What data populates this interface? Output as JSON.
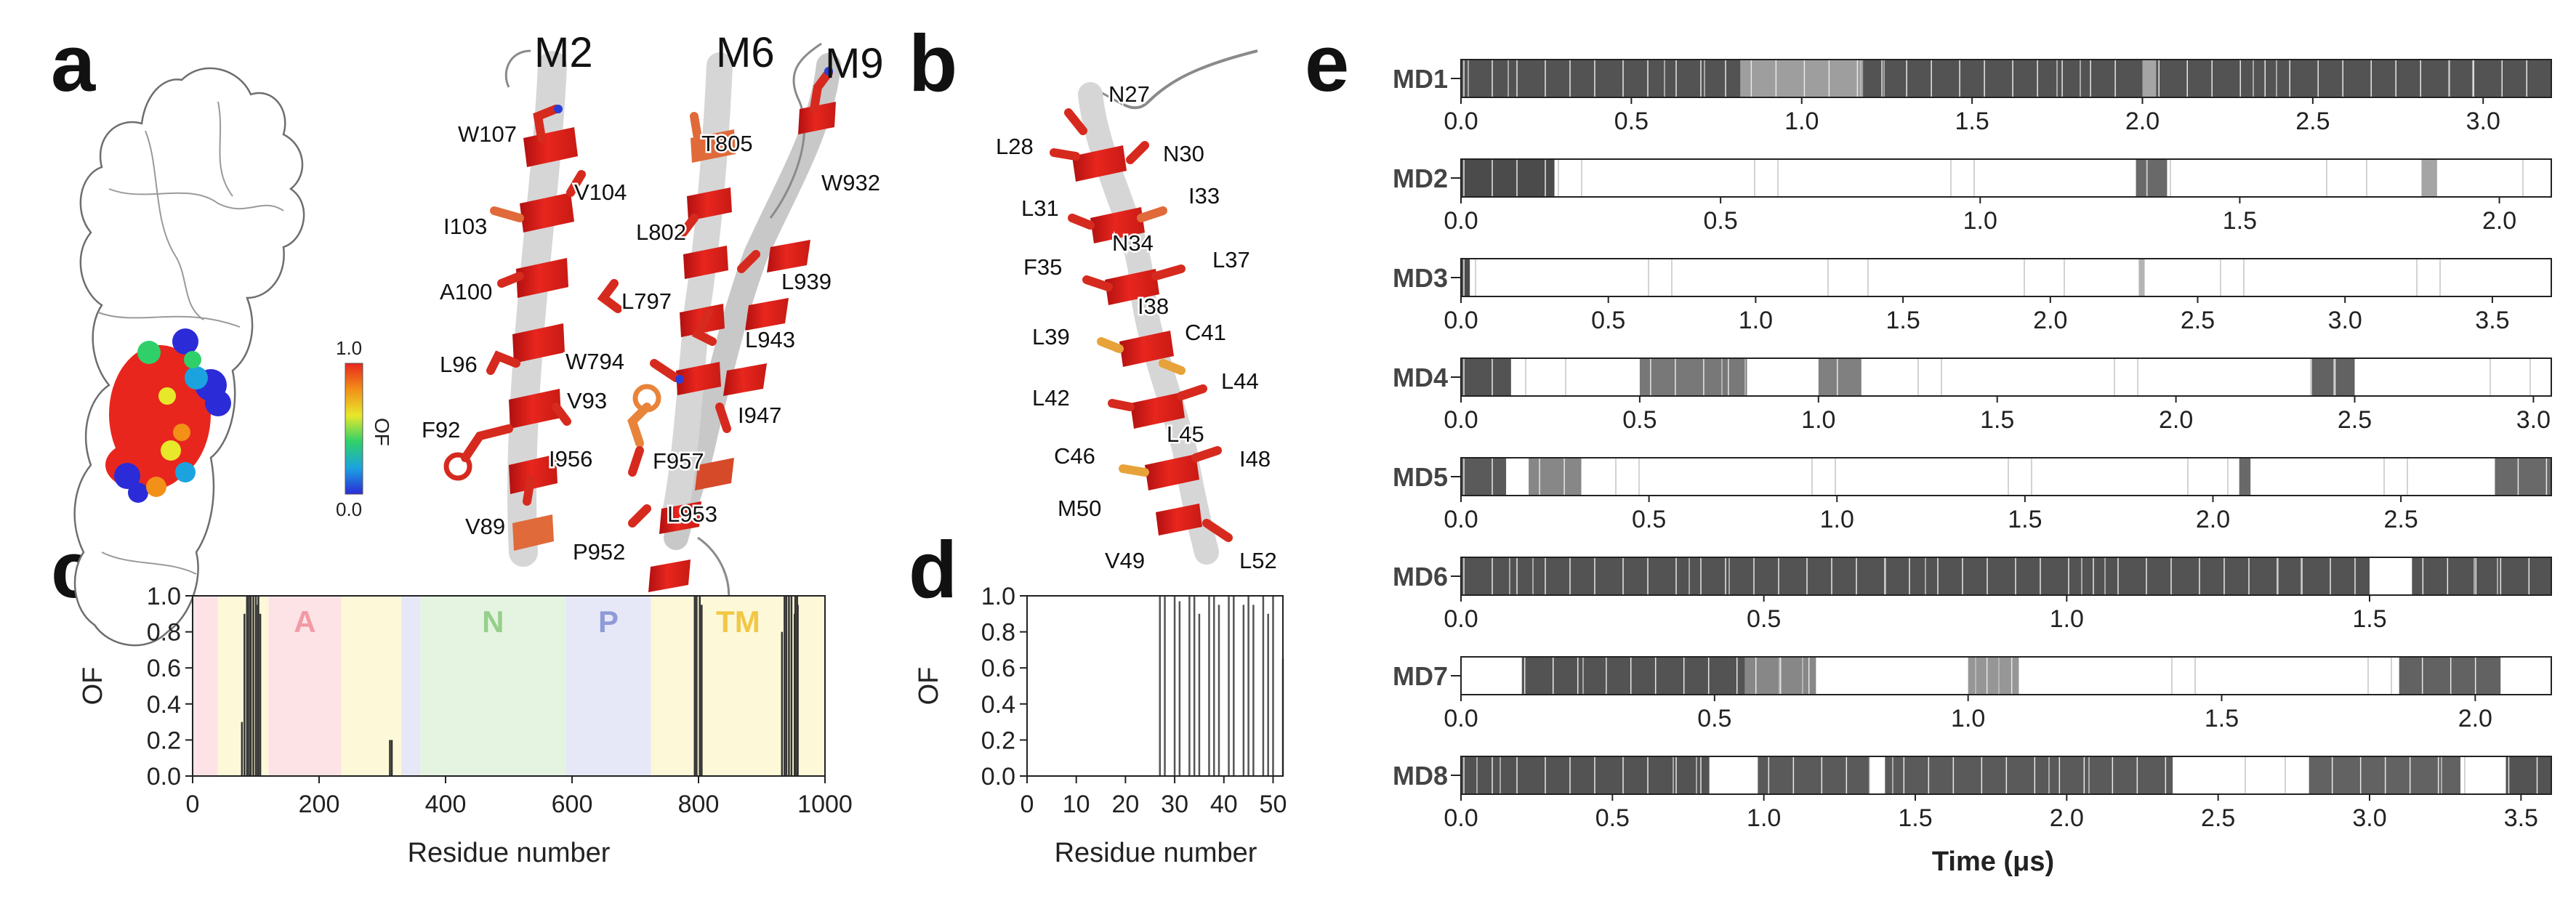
{
  "figure": {
    "panel_labels": [
      "a",
      "b",
      "c",
      "d",
      "e"
    ]
  },
  "panel_a": {
    "helix_labels": [
      "M2",
      "M6",
      "M9"
    ],
    "residue_labels": [
      "W107",
      "V104",
      "I103",
      "A100",
      "L96",
      "F92",
      "V89",
      "V93",
      "T805",
      "L802",
      "L797",
      "W794",
      "I956",
      "F957",
      "P952",
      "L953",
      "W932",
      "L939",
      "L943",
      "I947"
    ],
    "colorbar": {
      "max_label": "1.0",
      "min_label": "0.0",
      "title": "OF",
      "stops": [
        "#2b2bd8",
        "#1ba3e0",
        "#2fd06a",
        "#e8e82a",
        "#f29018",
        "#e8261e"
      ]
    }
  },
  "panel_b": {
    "residue_labels": [
      "N27",
      "L28",
      "N30",
      "L31",
      "I33",
      "N34",
      "F35",
      "L37",
      "I38",
      "L39",
      "C41",
      "L42",
      "L44",
      "L45",
      "C46",
      "I48",
      "M50",
      "V49",
      "L52"
    ]
  },
  "panel_c": {
    "ylabel": "OF",
    "xlabel": "Residue number",
    "xticks": [
      "0",
      "200",
      "400",
      "600",
      "800",
      "1000"
    ],
    "yticks": [
      "0.0",
      "0.2",
      "0.4",
      "0.6",
      "0.8",
      "1.0"
    ],
    "domains": [
      {
        "name": "",
        "start": 0,
        "end": 40,
        "color": "#fde3e6"
      },
      {
        "name": "",
        "start": 40,
        "end": 120,
        "color": "#fdf9d8"
      },
      {
        "name": "A",
        "start": 120,
        "end": 235,
        "color": "#fde3e6",
        "text_color": "#f29aa5"
      },
      {
        "name": "",
        "start": 235,
        "end": 330,
        "color": "#fdf9d8"
      },
      {
        "name": "",
        "start": 330,
        "end": 360,
        "color": "#e6e8f8"
      },
      {
        "name": "N",
        "start": 360,
        "end": 590,
        "color": "#e4f4e1",
        "text_color": "#96cf8a"
      },
      {
        "name": "P",
        "start": 590,
        "end": 725,
        "color": "#e6e8f8",
        "text_color": "#8e9bd6"
      },
      {
        "name": "TM",
        "start": 725,
        "end": 1000,
        "color": "#fdf9d8",
        "text_color": "#f2c746"
      }
    ]
  },
  "panel_d": {
    "ylabel": "OF",
    "xlabel": "Residue number",
    "xticks": [
      "0",
      "10",
      "20",
      "30",
      "40",
      "50"
    ],
    "yticks": [
      "0.0",
      "0.2",
      "0.4",
      "0.6",
      "0.8",
      "1.0"
    ]
  },
  "panel_e": {
    "xlabel": "Time (μs)",
    "runs": [
      {
        "name": "MD1",
        "duration": 3.2,
        "ticks": [
          "0.0",
          "0.5",
          "1.0",
          "1.5",
          "2.0",
          "2.5",
          "3.0"
        ]
      },
      {
        "name": "MD2",
        "duration": 2.1,
        "ticks": [
          "0.0",
          "0.5",
          "1.0",
          "1.5",
          "2.0"
        ]
      },
      {
        "name": "MD3",
        "duration": 3.7,
        "ticks": [
          "0.0",
          "0.5",
          "1.0",
          "1.5",
          "2.0",
          "2.5",
          "3.0",
          "3.5"
        ]
      },
      {
        "name": "MD4",
        "duration": 3.05,
        "ticks": [
          "0.0",
          "0.5",
          "1.0",
          "1.5",
          "2.0",
          "2.5",
          "3.0"
        ]
      },
      {
        "name": "MD5",
        "duration": 2.9,
        "ticks": [
          "0.0",
          "0.5",
          "1.0",
          "1.5",
          "2.0",
          "2.5"
        ]
      },
      {
        "name": "MD6",
        "duration": 1.8,
        "ticks": [
          "0.0",
          "0.5",
          "1.0",
          "1.5"
        ]
      },
      {
        "name": "MD7",
        "duration": 2.15,
        "ticks": [
          "0.0",
          "0.5",
          "1.0",
          "1.5",
          "2.0"
        ]
      },
      {
        "name": "MD8",
        "duration": 3.6,
        "ticks": [
          "0.0",
          "0.5",
          "1.0",
          "1.5",
          "2.0",
          "2.5",
          "3.0",
          "3.5"
        ]
      }
    ]
  },
  "chart_data": [
    {
      "type": "bar",
      "title": "",
      "xlabel": "Residue number",
      "ylabel": "OF",
      "xlim": [
        0,
        1000
      ],
      "ylim": [
        0,
        1.0
      ],
      "x": [
        78,
        82,
        86,
        89,
        92,
        96,
        100,
        103,
        104,
        107,
        312,
        315,
        794,
        797,
        802,
        805,
        932,
        936,
        939,
        943,
        947,
        952,
        953,
        956,
        957
      ],
      "values": [
        0.3,
        0.9,
        1.0,
        1.0,
        1.0,
        1.0,
        1.0,
        0.95,
        1.0,
        0.9,
        0.2,
        0.2,
        1.0,
        1.0,
        1.0,
        0.95,
        0.8,
        1.0,
        1.0,
        1.0,
        1.0,
        0.9,
        1.0,
        1.0,
        0.95
      ]
    },
    {
      "type": "bar",
      "title": "",
      "xlabel": "Residue number",
      "ylabel": "OF",
      "xlim": [
        0,
        52
      ],
      "ylim": [
        0,
        1.0
      ],
      "x": [
        27,
        28,
        30,
        31,
        33,
        34,
        35,
        37,
        38,
        39,
        41,
        42,
        44,
        45,
        46,
        48,
        49,
        50,
        52
      ],
      "values": [
        1.0,
        1.0,
        1.0,
        0.97,
        1.0,
        1.0,
        0.9,
        1.0,
        1.0,
        0.95,
        1.0,
        1.0,
        0.95,
        1.0,
        0.95,
        1.0,
        0.9,
        1.0,
        0.65
      ]
    },
    {
      "type": "heatmap",
      "title": "",
      "xlabel": "Time (μs)",
      "series": [
        {
          "name": "MD1",
          "duration": 3.2,
          "contact_segments": [
            [
              0.0,
              0.82,
              0.85
            ],
            [
              0.82,
              1.18,
              0.35
            ],
            [
              1.18,
              2.0,
              0.85
            ],
            [
              2.0,
              2.04,
              0.3
            ],
            [
              2.04,
              3.2,
              0.85
            ]
          ]
        },
        {
          "name": "MD2",
          "duration": 2.1,
          "contact_segments": [
            [
              0.0,
              0.18,
              0.9
            ],
            [
              1.3,
              1.36,
              0.7
            ],
            [
              1.85,
              1.88,
              0.3
            ]
          ]
        },
        {
          "name": "MD3",
          "duration": 3.7,
          "contact_segments": [
            [
              0.0,
              0.03,
              0.9
            ],
            [
              2.3,
              2.32,
              0.2
            ]
          ]
        },
        {
          "name": "MD4",
          "duration": 3.05,
          "contact_segments": [
            [
              0.0,
              0.14,
              0.85
            ],
            [
              0.5,
              0.8,
              0.6
            ],
            [
              1.0,
              1.12,
              0.55
            ],
            [
              2.38,
              2.5,
              0.75
            ]
          ]
        },
        {
          "name": "MD5",
          "duration": 2.9,
          "contact_segments": [
            [
              0.0,
              0.12,
              0.8
            ],
            [
              0.18,
              0.32,
              0.5
            ],
            [
              2.07,
              2.1,
              0.7
            ],
            [
              2.75,
              2.9,
              0.7
            ]
          ]
        },
        {
          "name": "MD6",
          "duration": 1.8,
          "contact_segments": [
            [
              0.0,
              1.5,
              0.85
            ],
            [
              1.57,
              1.8,
              0.85
            ]
          ]
        },
        {
          "name": "MD7",
          "duration": 2.15,
          "contact_segments": [
            [
              0.12,
              0.56,
              0.85
            ],
            [
              0.56,
              0.7,
              0.5
            ],
            [
              1.0,
              1.1,
              0.4
            ],
            [
              1.85,
              2.05,
              0.75
            ]
          ]
        },
        {
          "name": "MD8",
          "duration": 3.6,
          "contact_segments": [
            [
              0.0,
              0.82,
              0.85
            ],
            [
              0.98,
              1.35,
              0.8
            ],
            [
              1.4,
              2.35,
              0.8
            ],
            [
              2.8,
              3.3,
              0.75
            ],
            [
              3.45,
              3.6,
              0.85
            ]
          ]
        }
      ]
    }
  ]
}
